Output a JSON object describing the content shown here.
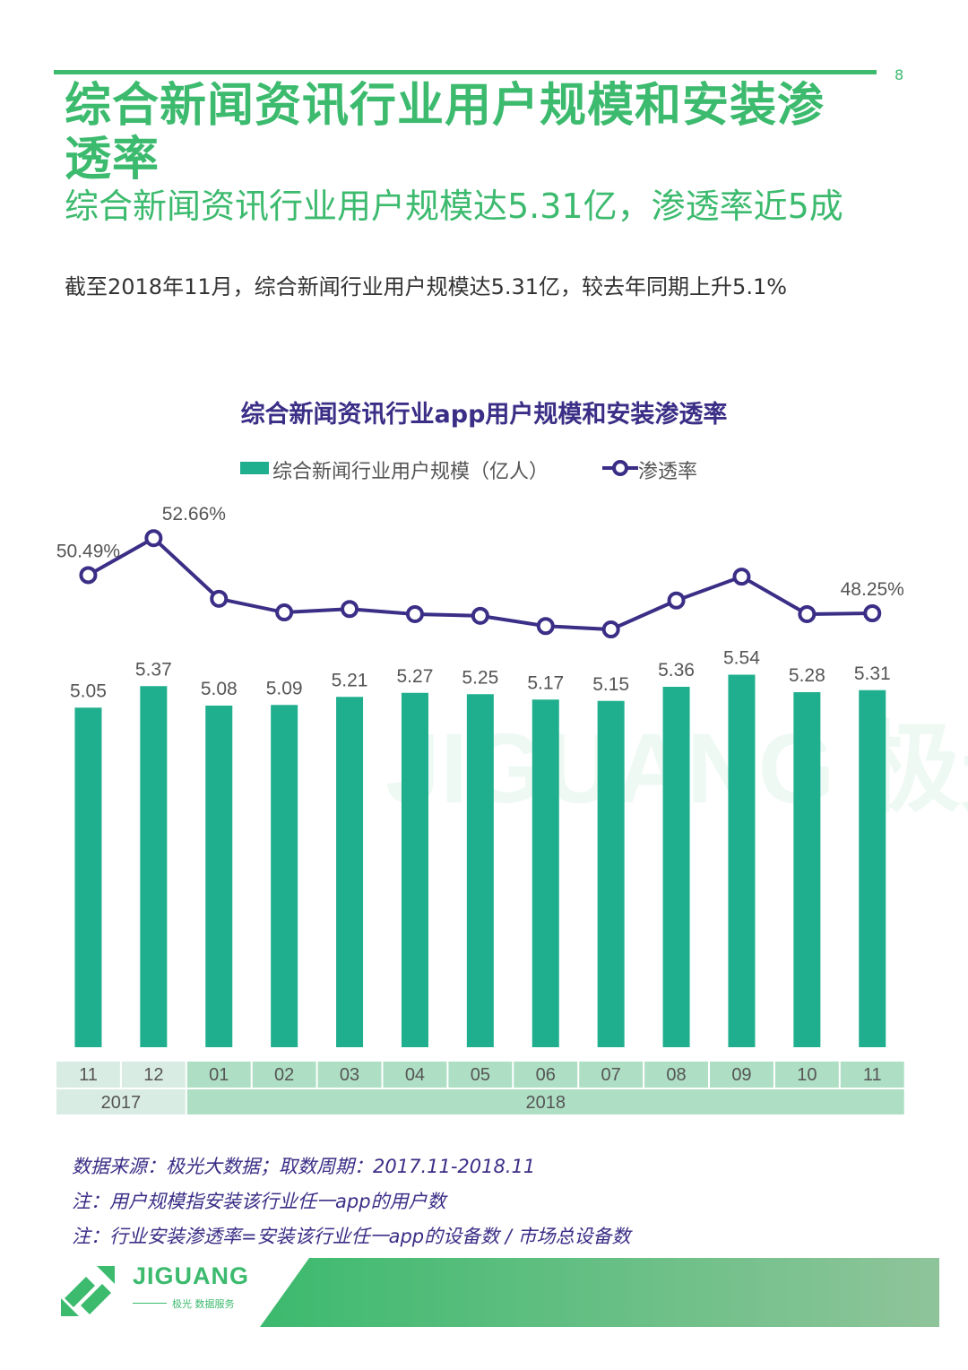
{
  "page": {
    "page_number": "8",
    "title": "综合新闻资讯行业用户规模和安装渗透率",
    "subtitle": "综合新闻资讯行业用户规模达5.31亿，渗透率近5成",
    "description": "截至2018年11月，综合新闻行业用户规模达5.31亿，较去年同期上升5.1%"
  },
  "chart_data": {
    "type": "bar",
    "title": "综合新闻资讯行业app用户规模和安装渗透率",
    "categories": [
      "11",
      "12",
      "01",
      "02",
      "03",
      "04",
      "05",
      "06",
      "07",
      "08",
      "09",
      "10",
      "11"
    ],
    "year_groups": [
      {
        "label": "2017",
        "span": 2
      },
      {
        "label": "2018",
        "span": 11
      }
    ],
    "series": [
      {
        "name": "综合新闻行业用户规模（亿人）",
        "type": "bar",
        "color": "#1faf8e",
        "values": [
          5.05,
          5.37,
          5.08,
          5.09,
          5.21,
          5.27,
          5.25,
          5.17,
          5.15,
          5.36,
          5.54,
          5.28,
          5.31
        ]
      },
      {
        "name": "渗透率",
        "type": "line",
        "color": "#3a2e86",
        "values": [
          50.49,
          52.66,
          49.1,
          48.3,
          48.5,
          48.2,
          48.1,
          47.5,
          47.3,
          49.0,
          50.4,
          48.2,
          48.25
        ],
        "labels": [
          "50.49%",
          "52.66%",
          "",
          "",
          "",
          "",
          "",
          "",
          "",
          "",
          "",
          "",
          "48.25%"
        ]
      }
    ],
    "watermark": "JIGUANG 极光大数据"
  },
  "notes": [
    "数据来源：极光大数据；取数周期：2017.11-2018.11",
    "注：用户规模指安装该行业任一app的用户数",
    "注：行业安装渗透率=安装该行业任一app的设备数 / 市场总设备数"
  ],
  "footer": {
    "logo_text": "JIGUANG",
    "logo_sub": "极光 数据服务"
  },
  "colors": {
    "brand_green": "#3cba6e",
    "bar_teal": "#1faf8e",
    "line_purple": "#3a2e86",
    "axis_bg_light": "#d9ece3",
    "axis_bg_dark": "#aedfc4"
  }
}
